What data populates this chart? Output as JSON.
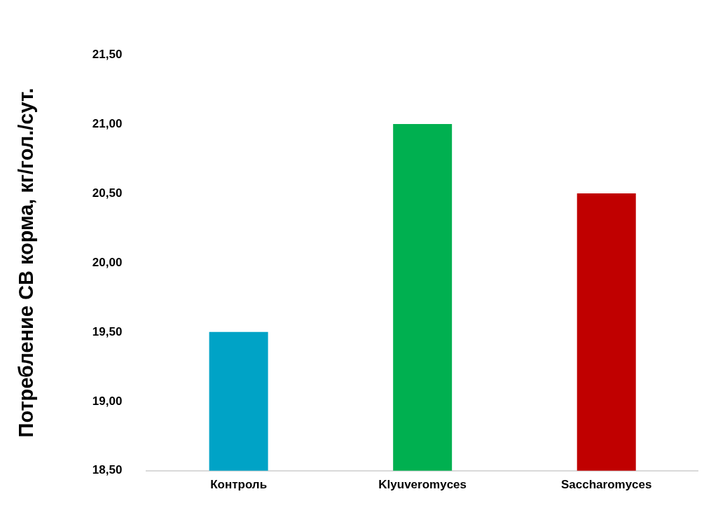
{
  "chart_data": {
    "type": "bar",
    "ylabel": "Потребление СВ корма, кг/гол./сут.",
    "categories": [
      "Контроль",
      "Klyuveromyces",
      "Saccharomyces"
    ],
    "values": [
      19.5,
      21.0,
      20.5
    ],
    "colors": [
      "#00a3c6",
      "#00b050",
      "#c00000"
    ],
    "ylim": [
      18.5,
      21.5
    ],
    "yticks": [
      {
        "value": 18.5,
        "label": "18,50"
      },
      {
        "value": 19,
        "label": "19,00"
      },
      {
        "value": 19.5,
        "label": "19,50"
      },
      {
        "value": 20,
        "label": "20,00"
      },
      {
        "value": 20.5,
        "label": "20,50"
      },
      {
        "value": 21,
        "label": "21,00"
      },
      {
        "value": 21.5,
        "label": "21,50"
      }
    ],
    "grid": false,
    "legend": false
  }
}
